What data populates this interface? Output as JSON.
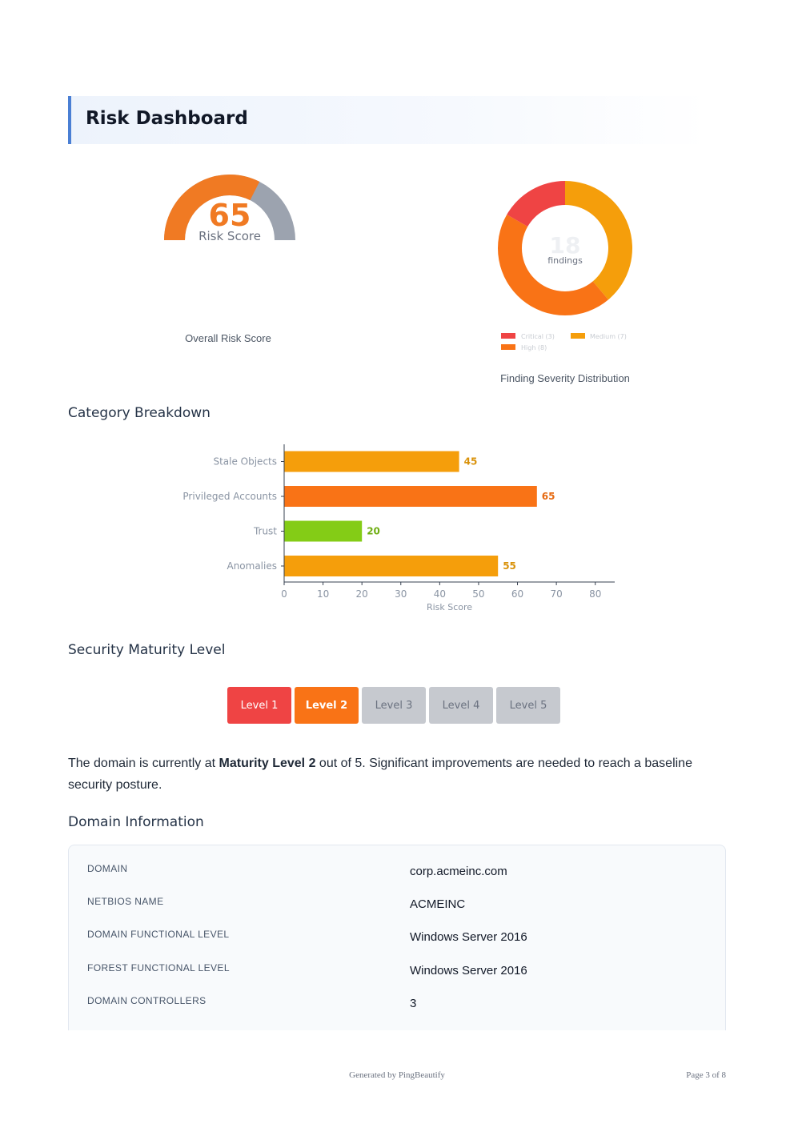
{
  "page_title": "Risk Dashboard",
  "gauge": {
    "score": "65",
    "label": "Risk Score",
    "value_fraction": 0.65,
    "fill_color": "#f07a23",
    "track_color": "#9ca3af",
    "caption": "Overall Risk Score"
  },
  "donut": {
    "center_value": "18",
    "center_label": "findings",
    "caption": "Finding Severity Distribution",
    "legend": [
      {
        "label": "Critical (3)",
        "color": "#ef4444"
      },
      {
        "label": "Medium (7)",
        "color": "#f59e0b"
      },
      {
        "label": "High (8)",
        "color": "#f97316"
      }
    ]
  },
  "sections": {
    "category": "Category Breakdown",
    "maturity": "Security Maturity Level",
    "domain_info": "Domain Information"
  },
  "chart_data": [
    {
      "type": "bar",
      "orientation": "horizontal",
      "categories": [
        "Stale Objects",
        "Privileged Accounts",
        "Trust",
        "Anomalies"
      ],
      "values": [
        45,
        65,
        20,
        55
      ],
      "colors": [
        "#f59e0b",
        "#f97316",
        "#84cc16",
        "#f59e0b"
      ],
      "label_colors": [
        "#d9920a",
        "#e66a12",
        "#6fae12",
        "#d9920a"
      ],
      "xlabel": "Risk Score",
      "xlim": [
        0,
        85
      ],
      "xticks": [
        "0",
        "10",
        "20",
        "30",
        "40",
        "50",
        "60",
        "70",
        "80"
      ],
      "grid": false
    },
    {
      "type": "pie",
      "style": "donut",
      "labels": [
        "Critical",
        "Medium",
        "High"
      ],
      "values": [
        3,
        7,
        8
      ],
      "colors": [
        "#ef4444",
        "#f59e0b",
        "#f97316"
      ]
    }
  ],
  "maturity": {
    "levels": [
      "Level 1",
      "Level 2",
      "Level 3",
      "Level 4",
      "Level 5"
    ],
    "current_index": 1,
    "text_before": "The domain is currently at ",
    "text_bold": "Maturity Level 2",
    "text_after": " out of 5. Significant improvements are needed to reach a baseline security posture."
  },
  "domain_info": {
    "rows": [
      {
        "label": "DOMAIN",
        "value": "corp.acmeinc.com"
      },
      {
        "label": "NETBIOS NAME",
        "value": "ACMEINC"
      },
      {
        "label": "DOMAIN FUNCTIONAL LEVEL",
        "value": "Windows Server 2016"
      },
      {
        "label": "FOREST FUNCTIONAL LEVEL",
        "value": "Windows Server 2016"
      },
      {
        "label": "DOMAIN CONTROLLERS",
        "value": "3"
      }
    ]
  },
  "footer": {
    "generated": "Generated by PingBeautify",
    "page": "Page 3 of 8"
  }
}
